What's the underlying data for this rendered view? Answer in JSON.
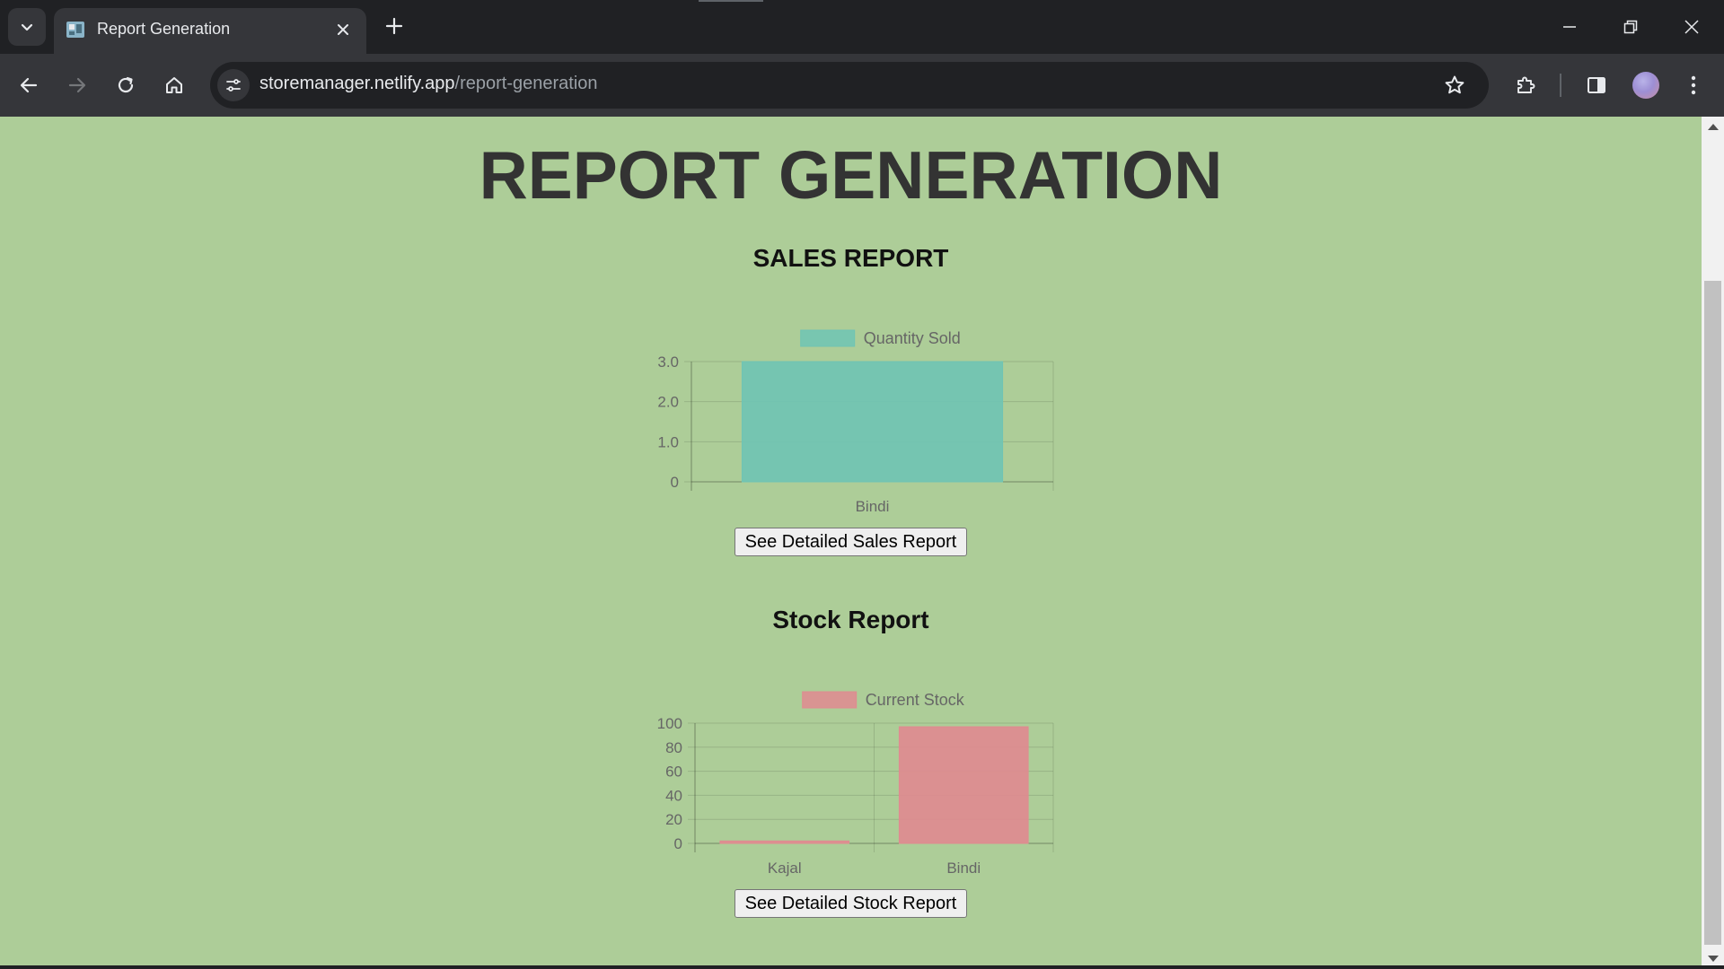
{
  "browser": {
    "tab": {
      "title": "Report Generation"
    },
    "url": {
      "host": "storemanager.netlify.app",
      "path": "/report-generation"
    }
  },
  "page": {
    "title": "REPORT GENERATION",
    "sales": {
      "heading": "SALES REPORT",
      "button_label": "See Detailed Sales Report"
    },
    "stock": {
      "heading": "Stock Report",
      "button_label": "See Detailed Stock Report"
    }
  },
  "chart_data": [
    {
      "type": "bar",
      "categories": [
        "Bindi"
      ],
      "series": [
        {
          "name": "Quantity Sold",
          "values": [
            3
          ],
          "color": "#6fc4b4"
        }
      ],
      "yticks": [
        "3.0",
        "2.0",
        "1.0",
        "0"
      ],
      "ylim": [
        0,
        3
      ],
      "grid": true,
      "legend": "top"
    },
    {
      "type": "bar",
      "categories": [
        "Kajal",
        "Bindi"
      ],
      "series": [
        {
          "name": "Current Stock",
          "values": [
            2,
            97
          ],
          "color": "#e08a90"
        }
      ],
      "yticks": [
        "100",
        "80",
        "60",
        "40",
        "20",
        "0"
      ],
      "ylim": [
        0,
        100
      ],
      "grid": true,
      "legend": "top"
    }
  ]
}
